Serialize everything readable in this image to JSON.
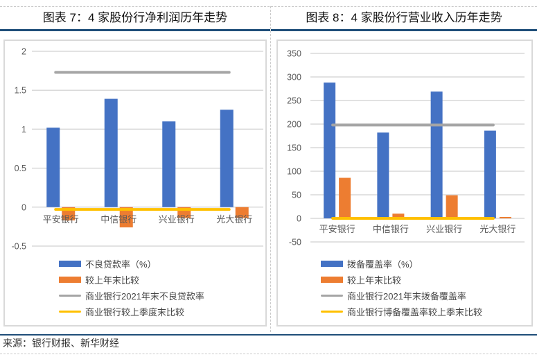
{
  "left": {
    "title": "图表 7：4 家股份行净利润历年走势",
    "legend": [
      {
        "label": "不良贷款率（%）",
        "type": "bar",
        "color": "#4472c4"
      },
      {
        "label": "较上年末比较",
        "type": "bar",
        "color": "#ed7d31"
      },
      {
        "label": "商业银行2021年末不良贷款率",
        "type": "line",
        "color": "#a5a5a5"
      },
      {
        "label": "商业银行较上季度末比较",
        "type": "line",
        "color": "#ffc000"
      }
    ],
    "yticks": [
      "2",
      "1.5",
      "1",
      "0.5",
      "0",
      "-0.5"
    ],
    "categories": [
      "平安银行",
      "中信银行",
      "兴业银行",
      "光大银行"
    ]
  },
  "right": {
    "title": "图表 8：4 家股份行营业收入历年走势",
    "legend": [
      {
        "label": "拨备覆盖率（%）",
        "type": "bar",
        "color": "#4472c4"
      },
      {
        "label": "较上年末比较",
        "type": "bar",
        "color": "#ed7d31"
      },
      {
        "label": "商业银行2021年末拨备覆盖率",
        "type": "line",
        "color": "#a5a5a5"
      },
      {
        "label": "商业银行博备覆盖率较上季末比较",
        "type": "line",
        "color": "#ffc000"
      }
    ],
    "yticks": [
      "350",
      "300",
      "250",
      "200",
      "150",
      "100",
      "50",
      "0",
      "-50"
    ],
    "categories": [
      "平安银行",
      "中信银行",
      "兴业银行",
      "光大银行"
    ]
  },
  "source": "来源：银行财报、新华财经",
  "chart_data": [
    {
      "type": "bar",
      "title": "图表 7：4 家股份行净利润历年走势",
      "categories": [
        "平安银行",
        "中信银行",
        "兴业银行",
        "光大银行"
      ],
      "series": [
        {
          "name": "不良贷款率（%）",
          "type": "bar",
          "color": "#4472c4",
          "values": [
            1.02,
            1.39,
            1.1,
            1.25
          ]
        },
        {
          "name": "较上年末比较",
          "type": "bar",
          "color": "#ed7d31",
          "values": [
            -0.17,
            -0.26,
            -0.14,
            -0.14
          ]
        },
        {
          "name": "商业银行2021年末不良贷款率",
          "type": "line",
          "color": "#a5a5a5",
          "values": [
            1.73,
            1.73,
            1.73,
            1.73
          ]
        },
        {
          "name": "商业银行较上季度末比较",
          "type": "line",
          "color": "#ffc000",
          "values": [
            -0.03,
            -0.03,
            -0.03,
            -0.03
          ]
        }
      ],
      "xlabel": "",
      "ylabel": "",
      "ylim": [
        -0.5,
        2
      ],
      "yticks": [
        -0.5,
        0,
        0.5,
        1,
        1.5,
        2
      ],
      "grid": true,
      "legend_position": "bottom"
    },
    {
      "type": "bar",
      "title": "图表 8：4 家股份行营业收入历年走势",
      "categories": [
        "平安银行",
        "中信银行",
        "兴业银行",
        "光大银行"
      ],
      "series": [
        {
          "name": "拨备覆盖率（%）",
          "type": "bar",
          "color": "#4472c4",
          "values": [
            288,
            182,
            269,
            186
          ]
        },
        {
          "name": "较上年末比较",
          "type": "bar",
          "color": "#ed7d31",
          "values": [
            86,
            10,
            49,
            3
          ]
        },
        {
          "name": "商业银行2021年末拨备覆盖率",
          "type": "line",
          "color": "#a5a5a5",
          "values": [
            198,
            198,
            198,
            198
          ]
        },
        {
          "name": "商业银行博备覆盖率较上季末比较",
          "type": "line",
          "color": "#ffc000",
          "values": [
            0,
            0,
            0,
            0
          ]
        }
      ],
      "xlabel": "",
      "ylabel": "",
      "ylim": [
        -50,
        350
      ],
      "yticks": [
        -50,
        0,
        50,
        100,
        150,
        200,
        250,
        300,
        350
      ],
      "grid": true,
      "legend_position": "bottom"
    }
  ]
}
